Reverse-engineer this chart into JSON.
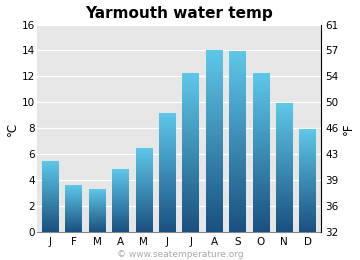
{
  "title": "Yarmouth water temp",
  "months": [
    "J",
    "F",
    "M",
    "A",
    "M",
    "J",
    "J",
    "A",
    "S",
    "O",
    "N",
    "D"
  ],
  "values_c": [
    5.4,
    3.6,
    3.3,
    4.8,
    6.4,
    9.1,
    12.2,
    14.0,
    13.9,
    12.2,
    9.9,
    7.9
  ],
  "ylim_c": [
    0,
    16
  ],
  "yticks_c": [
    0,
    2,
    4,
    6,
    8,
    10,
    12,
    14,
    16
  ],
  "yticks_f": [
    32,
    36,
    39,
    43,
    46,
    50,
    54,
    57,
    61
  ],
  "ylabel_left": "°C",
  "ylabel_right": "°F",
  "bar_color_top": "#5ec8e8",
  "bar_color_bottom": "#1a5080",
  "plot_bg_color": "#e6e6e6",
  "fig_bg_color": "#ffffff",
  "title_fontsize": 11,
  "watermark": "© www.seatemperature.org",
  "watermark_color": "#aaaaaa",
  "watermark_fontsize": 6.5
}
